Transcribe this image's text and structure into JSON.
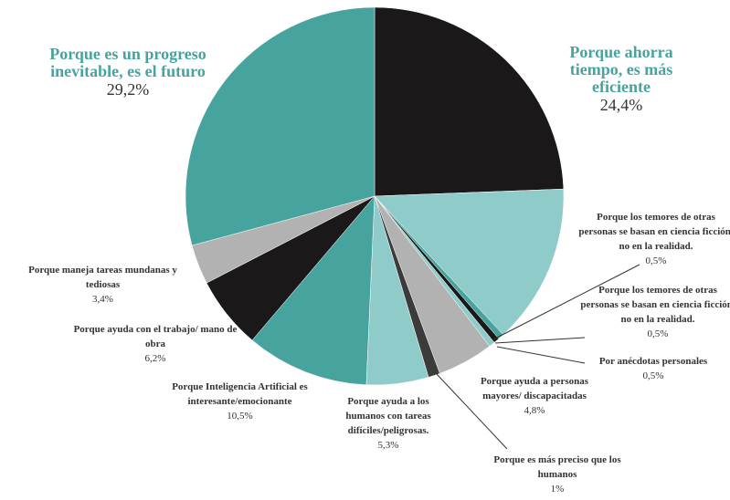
{
  "chart_data": {
    "type": "pie",
    "categories": [
      "Porque ahorra tiempo, es más eficiente",
      null,
      "Porque los temores de otras personas se basan en ciencia ficción, no en la realidad.",
      "Porque los temores de otras personas se basan en ciencia ficción, no en la realidad.",
      "Por anécdotas personales",
      "Porque ayuda a personas mayores/ discapacitadas",
      "Porque es más preciso que los humanos",
      "Porque ayuda a los humanos con tareas difíciles/peligrosas.",
      "Porque Inteligencia Artificial es interesante/emocionante",
      "Porque ayuda con el trabajo/ mano de obra",
      "Porque maneja tareas mundanas y tediosas",
      "Porque es un progreso inevitable, es el futuro"
    ],
    "values": [
      24.4,
      13.7,
      0.5,
      0.5,
      0.5,
      4.8,
      1,
      5.3,
      10.5,
      6.2,
      3.4,
      29.2
    ],
    "value_labels": [
      "24,4%",
      null,
      "0,5%",
      "0,5%",
      "0,5%",
      "4,8%",
      "1%",
      "5,3%",
      "10,5%",
      "6,2%",
      "3,4%",
      "29,2%"
    ],
    "colors": [
      "#1b1819",
      "#8ecbc9",
      "#47a39e",
      "#1b1819",
      "#8ecbc9",
      "#b2b2b2",
      "#3b3b3b",
      "#8ecbc9",
      "#47a39e",
      "#1b1819",
      "#b2b2b2",
      "#47a39e"
    ]
  }
}
